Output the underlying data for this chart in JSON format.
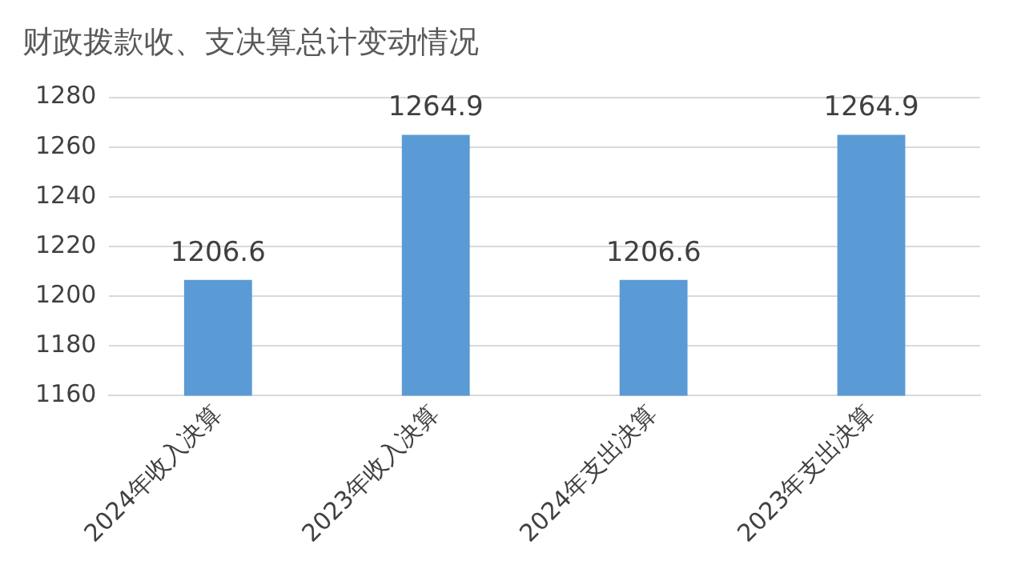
{
  "chart_data": {
    "type": "bar",
    "title": "财政拨款收、支决算总计变动情况",
    "categories": [
      "2024年收入决算",
      "2023年收入决算",
      "2024年支出决算",
      "2023年支出决算"
    ],
    "values": [
      1206.6,
      1264.9,
      1206.6,
      1264.9
    ],
    "color": "#5b9bd5",
    "ylim": [
      1160,
      1280
    ],
    "yticks": [
      1160,
      1180,
      1200,
      1220,
      1240,
      1260,
      1280
    ],
    "grid": "y",
    "data_labels": true
  }
}
